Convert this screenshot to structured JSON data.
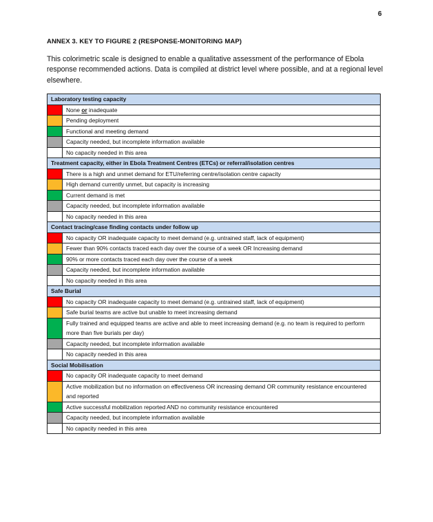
{
  "page_number": "6",
  "title": "ANNEX 3. KEY TO FIGURE 2 (RESPONSE-MONITORING MAP)",
  "intro": "This colorimetric scale is designed to enable a qualitative assessment of the performance of Ebola response recommended actions. Data is compiled at district level where possible, and at a regional level elsewhere.",
  "colors": {
    "red": "#ff0000",
    "orange": "#fbb829",
    "green": "#00b050",
    "grey": "#a6a6a6",
    "white": "#ffffff",
    "header_bg": "#c6d9f1"
  },
  "sections": [
    {
      "heading": "Laboratory testing capacity",
      "rows": [
        {
          "color": "red",
          "text": "None or inadequate"
        },
        {
          "color": "orange",
          "text": "Pending deployment"
        },
        {
          "color": "green",
          "text": "Functional and meeting demand"
        },
        {
          "color": "grey",
          "text": "Capacity needed, but incomplete information available"
        },
        {
          "color": "white",
          "text": "No capacity needed in this area"
        }
      ]
    },
    {
      "heading": "Treatment capacity, either in Ebola Treatment Centres (ETCs) or referral/isolation centres",
      "rows": [
        {
          "color": "red",
          "text": "There is a high and unmet demand for ETU/referring centre/isolation centre capacity"
        },
        {
          "color": "orange",
          "text": "High demand currently unmet, but capacity is increasing"
        },
        {
          "color": "green",
          "text": "Current demand is met"
        },
        {
          "color": "grey",
          "text": "Capacity needed, but incomplete information available"
        },
        {
          "color": "white",
          "text": "No capacity needed in this area"
        }
      ]
    },
    {
      "heading": "Contact tracing/case finding contacts under follow up",
      "rows": [
        {
          "color": "red",
          "text": "No capacity OR inadequate capacity to meet demand (e.g. untrained staff, lack of equipment)"
        },
        {
          "color": "orange",
          "text": "Fewer than 90% contacts traced each day over the course of a week OR Increasing demand"
        },
        {
          "color": "green",
          "text": "90% or more contacts traced each day over the course of a week"
        },
        {
          "color": "grey",
          "text": "Capacity needed, but incomplete information available"
        },
        {
          "color": "white",
          "text": "No capacity needed in this area"
        }
      ]
    },
    {
      "heading": "Safe Burial",
      "rows": [
        {
          "color": "red",
          "text": "No capacity OR inadequate capacity to meet demand (e.g. untrained staff, lack of equipment)"
        },
        {
          "color": "orange",
          "text": "Safe burial teams are active but unable to meet increasing demand"
        },
        {
          "color": "green",
          "text": "Fully trained and equipped teams are active and able to meet increasing demand (e.g. no team is required to perform more than five burials per day)"
        },
        {
          "color": "grey",
          "text": "Capacity needed, but incomplete information available"
        },
        {
          "color": "white",
          "text": "No capacity needed in this area"
        }
      ]
    },
    {
      "heading": "Social Mobilisation",
      "rows": [
        {
          "color": "red",
          "text": "No capacity OR inadequate capacity to meet demand"
        },
        {
          "color": "orange",
          "text": "Active mobilization but no information on effectiveness OR increasing demand OR community resistance encountered and reported"
        },
        {
          "color": "green",
          "text": "Active successful mobilization reported AND no community resistance encountered"
        },
        {
          "color": "grey",
          "text": "Capacity needed, but incomplete information available"
        },
        {
          "color": "white",
          "text": "No capacity needed in this area"
        }
      ]
    }
  ]
}
